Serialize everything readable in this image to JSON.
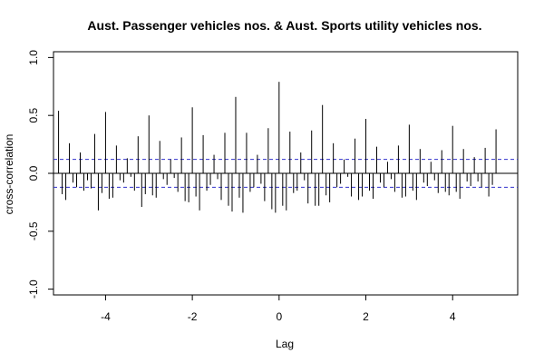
{
  "chart_data": {
    "type": "bar",
    "title": "Aust. Passenger vehicles nos. & Aust. Sports utility vehicles nos.",
    "xlabel": "Lag",
    "ylabel": "cross-correlation",
    "xlim": [
      -5.2,
      5.5
    ],
    "ylim": [
      -1.05,
      1.05
    ],
    "x_ticks": [
      -4,
      -2,
      0,
      2,
      4
    ],
    "x_tick_labels": [
      "-4",
      "-2",
      "0",
      "2",
      "4"
    ],
    "y_ticks": [
      -1.0,
      -0.5,
      0.0,
      0.5,
      1.0
    ],
    "y_tick_labels": [
      "-1.0",
      "-0.5",
      "0.0",
      "0.5",
      "1.0"
    ],
    "zero_line": true,
    "confidence_band": [
      -0.12,
      0.12
    ],
    "grid": false,
    "lag_step": 0.0833333,
    "values": [
      0.54,
      -0.18,
      -0.23,
      0.26,
      -0.08,
      -0.12,
      0.18,
      -0.15,
      -0.06,
      -0.13,
      0.34,
      -0.32,
      -0.17,
      0.53,
      -0.22,
      -0.21,
      0.24,
      -0.06,
      -0.08,
      0.13,
      -0.03,
      -0.15,
      0.32,
      -0.29,
      -0.18,
      0.5,
      -0.19,
      -0.21,
      0.28,
      -0.05,
      -0.1,
      0.12,
      -0.04,
      -0.16,
      0.31,
      -0.24,
      -0.25,
      0.57,
      -0.2,
      -0.32,
      0.33,
      -0.15,
      -0.1,
      0.16,
      -0.05,
      -0.23,
      0.35,
      -0.28,
      -0.33,
      0.66,
      -0.21,
      -0.34,
      0.35,
      -0.16,
      -0.12,
      0.16,
      -0.09,
      -0.24,
      0.39,
      -0.31,
      -0.34,
      0.79,
      -0.28,
      -0.32,
      0.36,
      -0.17,
      -0.15,
      0.18,
      -0.06,
      -0.26,
      0.37,
      -0.28,
      -0.28,
      0.59,
      -0.19,
      -0.25,
      0.26,
      -0.12,
      -0.09,
      0.12,
      -0.03,
      -0.2,
      0.3,
      -0.23,
      -0.2,
      0.47,
      -0.15,
      -0.22,
      0.23,
      -0.08,
      -0.12,
      0.1,
      -0.05,
      -0.16,
      0.24,
      -0.21,
      -0.2,
      0.42,
      -0.15,
      -0.23,
      0.21,
      -0.08,
      -0.11,
      0.1,
      -0.06,
      -0.17,
      0.2,
      -0.16,
      -0.19,
      0.41,
      -0.16,
      -0.22,
      0.21,
      -0.07,
      -0.11,
      0.14,
      -0.07,
      -0.12,
      0.22,
      -0.2,
      -0.1,
      0.38
    ],
    "colors": {
      "bars": "#000000",
      "confidence_band": "#3333cc",
      "zero_line": "#000000",
      "frame": "#000000"
    }
  }
}
